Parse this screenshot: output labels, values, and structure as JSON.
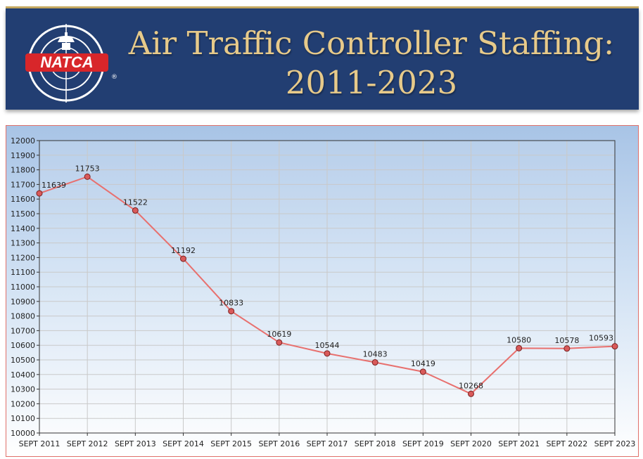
{
  "header": {
    "title_line1": "Air Traffic Controller Staffing:",
    "title_line2": "2011-2023",
    "logo_text": "NATCA",
    "logo_mark": "®",
    "logo_icon": "control-tower-icon"
  },
  "colors": {
    "banner": "#223e72",
    "title": "#e7ca8a",
    "line": "#e8706e",
    "marker": "#d95a5a",
    "frame": "#e0706a"
  },
  "chart_data": {
    "type": "line",
    "title": "",
    "xlabel": "",
    "ylabel": "",
    "categories": [
      "SEPT 2011",
      "SEPT 2012",
      "SEPT 2013",
      "SEPT 2014",
      "SEPT 2015",
      "SEPT 2016",
      "SEPT 2017",
      "SEPT 2018",
      "SEPT 2019",
      "SEPT 2020",
      "SEPT 2021",
      "SEPT 2022",
      "SEPT 2023"
    ],
    "series": [
      {
        "values": [
          11639,
          11753,
          11522,
          11192,
          10833,
          10619,
          10544,
          10483,
          10419,
          10268,
          10580,
          10578,
          10593
        ],
        "labels": [
          "11639",
          "11753",
          "11522",
          "11192",
          "10833",
          "10619",
          "10544",
          "10483",
          "10419",
          "10268",
          "10580",
          "10578",
          "10593"
        ]
      }
    ],
    "ylim": [
      10000,
      12000
    ],
    "ytick_step": 100,
    "grid": true,
    "legend": "none"
  }
}
